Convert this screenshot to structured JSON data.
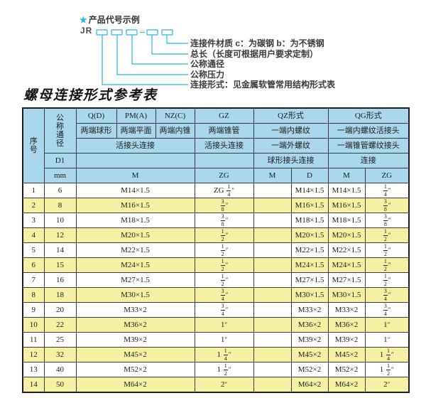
{
  "diagram": {
    "star_icon": "★",
    "heading": "产品代号示例",
    "code_prefix": "JR",
    "line_color": "#2fb0e4",
    "labels": [
      "连接件材质  c：为碳钢  b：为不锈钢",
      "总长（长度可根据用户要求定制）",
      "公称通径",
      "公称压力",
      "连接形式：见金属软管常用结构形式表"
    ]
  },
  "table_title": "螺母连接形式参考表",
  "table": {
    "header": {
      "seq": "序号",
      "dn": "公称通径",
      "d1": "D1",
      "unit": "mm",
      "forms": [
        "Q(D)",
        "PM(A)",
        "NZ(C)",
        "GZ",
        "QZ形式",
        "QG形式"
      ],
      "ends": [
        "两端球形",
        "两端平面",
        "两端内锥",
        "两端锥管",
        "一端内螺纹",
        "一端内螺纹活接头"
      ],
      "conn": [
        "活接头连接",
        "活接头连接",
        "一端外螺纹",
        "一端锥管螺纹接头"
      ],
      "conn2": [
        "球形接头连接",
        "连接"
      ],
      "units": [
        "M",
        "ZG",
        "M",
        "D",
        "M",
        "ZG"
      ]
    },
    "colors": {
      "header_bg": "#a9d8ee",
      "alt_row_bg": "#f6f1a2",
      "border": "#3c3c3c"
    },
    "rows": [
      [
        "1",
        "6",
        "M14×1.5",
        "ZG 1/4\"",
        "",
        "M14×1.5",
        "M14×1.5",
        "1/4\""
      ],
      [
        "2",
        "8",
        "M16×1.5",
        "3/8\"",
        "",
        "M16×1.5",
        "M16×1.5",
        "3/8\""
      ],
      [
        "3",
        "10",
        "M18×1.5",
        "3/8\"",
        "",
        "M18×1.5",
        "M18×1.5",
        "3/8\""
      ],
      [
        "4",
        "12",
        "M20×1.5",
        "1/2\"",
        "",
        "M20×1.5",
        "M20×1.5",
        "1/2\""
      ],
      [
        "5",
        "14",
        "M22×1.5",
        "1/2\"",
        "",
        "M22×1.5",
        "M22×1.5",
        "1/2\""
      ],
      [
        "6",
        "15",
        "M24×1.5",
        "1/2\"",
        "",
        "M24×1.5",
        "M24×1.5",
        "1/2\""
      ],
      [
        "7",
        "16",
        "M27×1.5",
        "1/2\"",
        "",
        "M27×1.5",
        "M27×1.5",
        "1/2\""
      ],
      [
        "8",
        "18",
        "M30×1.5",
        "3/4\"",
        "",
        "M30×1.5",
        "M30×1.5",
        "3/4\""
      ],
      [
        "9",
        "20",
        "M33×2",
        "3/4\"",
        "",
        "M33×2",
        "M33×2",
        "3/4\""
      ],
      [
        "10",
        "22",
        "M36×2",
        "1\"",
        "",
        "M36×2",
        "M36×2",
        "1\""
      ],
      [
        "11",
        "25",
        "M39×2",
        "1\"",
        "",
        "M39×2",
        "M39×2",
        "1\""
      ],
      [
        "12",
        "32",
        "M45×2",
        "1 1/4\"",
        "",
        "M45×2",
        "M45×2",
        "1 1/4\""
      ],
      [
        "13",
        "40",
        "M52×2",
        "1 1/2\"",
        "",
        "M52×2",
        "M52×2",
        "1 1/2\""
      ],
      [
        "14",
        "50",
        "M64×2",
        "2\"",
        "",
        "M64×2",
        "M64×2",
        "2\""
      ]
    ]
  }
}
